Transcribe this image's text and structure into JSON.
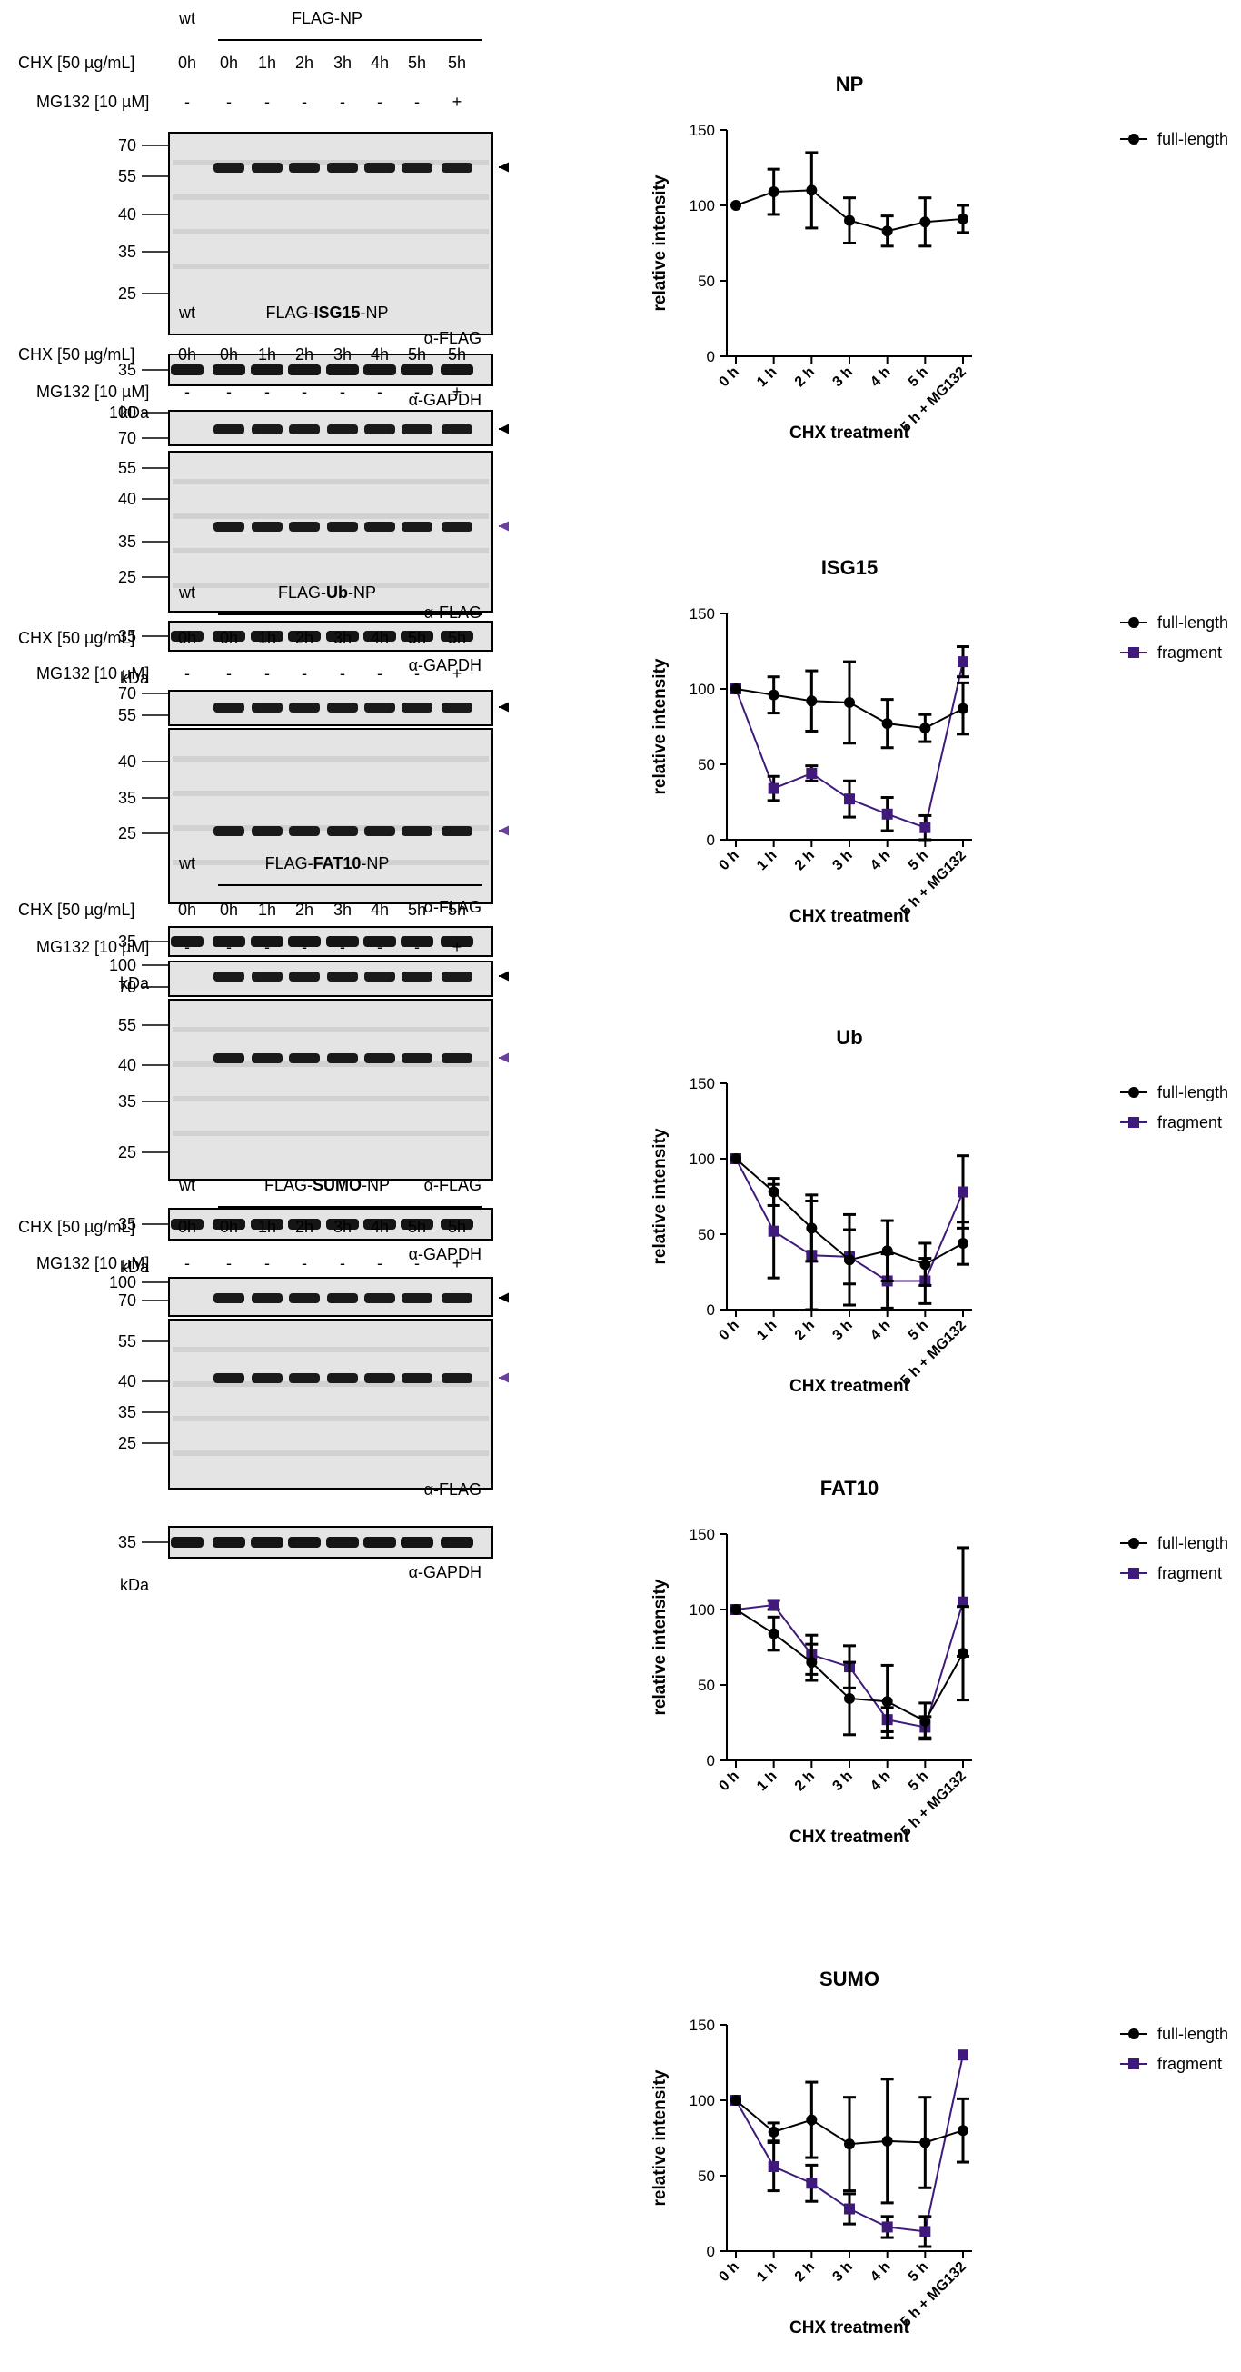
{
  "colors": {
    "full_length": "#000000",
    "fragment": "#3f1a7a",
    "arrow_fragment": "#6b3fa0",
    "blot_bg": "#e4e4e4"
  },
  "blot_labels": {
    "wt": "wt",
    "cond_label": "CHX [50 µg/mL]",
    "mg_label": "MG132 [10 µM]",
    "lanes": [
      "0h",
      "0h",
      "1h",
      "2h",
      "3h",
      "4h",
      "5h",
      "5h"
    ],
    "mg_values": [
      "-",
      "-",
      "-",
      "-",
      "-",
      "-",
      "-",
      "+"
    ],
    "anti_flag": "α-FLAG",
    "anti_gapdh": "α-GAPDH",
    "kda": "kDa"
  },
  "blots": [
    {
      "header_prefix": "FLAG-",
      "header_bold": "",
      "header_suffix": "NP",
      "main_markers": [
        "70",
        "55",
        "40",
        "35",
        "25"
      ],
      "top_markers": [],
      "gapdh_marker": "35"
    },
    {
      "header_prefix": "FLAG-",
      "header_bold": "ISG15",
      "header_suffix": "-NP",
      "top_markers": [
        "100",
        "70"
      ],
      "main_markers": [
        "55",
        "40",
        "35",
        "25"
      ],
      "gapdh_marker": "35"
    },
    {
      "header_prefix": "FLAG-",
      "header_bold": "Ub",
      "header_suffix": "-NP",
      "top_markers": [
        "70",
        "55"
      ],
      "main_markers": [
        "40",
        "35",
        "25"
      ],
      "gapdh_marker": "35"
    },
    {
      "header_prefix": "FLAG-",
      "header_bold": "FAT10",
      "header_suffix": "-NP",
      "top_markers": [
        "100",
        "70"
      ],
      "main_markers": [
        "55",
        "40",
        "35",
        "25"
      ],
      "gapdh_marker": "35"
    },
    {
      "header_prefix": "FLAG-",
      "header_bold": "SUMO",
      "header_suffix": "-NP",
      "top_markers": [
        "100",
        "70"
      ],
      "main_markers": [
        "55",
        "40",
        "35",
        "25"
      ],
      "gapdh_marker": "35"
    }
  ],
  "chart_data": [
    {
      "type": "line",
      "title": "NP",
      "xlabel": "CHX treatment",
      "ylabel": "relative intensity",
      "ylim": [
        0,
        150
      ],
      "yticks": [
        0,
        50,
        100,
        150
      ],
      "categories": [
        "0 h",
        "1 h",
        "2 h",
        "3 h",
        "4 h",
        "5 h",
        "5 h + MG132"
      ],
      "series": [
        {
          "name": "full-length",
          "marker": "circle",
          "values": [
            100,
            109,
            110,
            90,
            83,
            89,
            91
          ],
          "errors": [
            0,
            15,
            25,
            15,
            10,
            16,
            9
          ]
        }
      ]
    },
    {
      "type": "line",
      "title": "ISG15",
      "xlabel": "CHX treatment",
      "ylabel": "relative intensity",
      "ylim": [
        0,
        150
      ],
      "yticks": [
        0,
        50,
        100,
        150
      ],
      "categories": [
        "0 h",
        "1 h",
        "2 h",
        "3 h",
        "4 h",
        "5 h",
        "5 h + MG132"
      ],
      "series": [
        {
          "name": "full-length",
          "marker": "circle",
          "values": [
            100,
            96,
            92,
            91,
            77,
            74,
            87
          ],
          "errors": [
            0,
            12,
            20,
            27,
            16,
            9,
            17
          ]
        },
        {
          "name": "fragment",
          "marker": "square",
          "values": [
            100,
            34,
            44,
            27,
            17,
            8,
            118
          ],
          "errors": [
            0,
            8,
            5,
            12,
            11,
            8,
            10
          ]
        }
      ]
    },
    {
      "type": "line",
      "title": "Ub",
      "xlabel": "CHX treatment",
      "ylabel": "relative intensity",
      "ylim": [
        0,
        150
      ],
      "yticks": [
        0,
        50,
        100,
        150
      ],
      "categories": [
        "0 h",
        "1 h",
        "2 h",
        "3 h",
        "4 h",
        "5 h",
        "5 h + MG132"
      ],
      "series": [
        {
          "name": "full-length",
          "marker": "circle",
          "values": [
            100,
            78,
            54,
            33,
            39,
            30,
            44
          ],
          "errors": [
            0,
            9,
            22,
            30,
            20,
            14,
            14
          ]
        },
        {
          "name": "fragment",
          "marker": "square",
          "values": [
            100,
            52,
            36,
            35,
            19,
            19,
            78
          ],
          "errors": [
            0,
            31,
            36,
            18,
            18,
            15,
            24
          ]
        }
      ]
    },
    {
      "type": "line",
      "title": "FAT10",
      "xlabel": "CHX treatment",
      "ylabel": "relative intensity",
      "ylim": [
        0,
        150
      ],
      "yticks": [
        0,
        50,
        100,
        150
      ],
      "categories": [
        "0 h",
        "1 h",
        "2 h",
        "3 h",
        "4 h",
        "5 h",
        "5 h + MG132"
      ],
      "series": [
        {
          "name": "full-length",
          "marker": "circle",
          "values": [
            100,
            84,
            65,
            41,
            39,
            26,
            71
          ],
          "errors": [
            0,
            11,
            12,
            24,
            24,
            12,
            31
          ]
        },
        {
          "name": "fragment",
          "marker": "square",
          "values": [
            100,
            103,
            70,
            62,
            27,
            22,
            105
          ],
          "errors": [
            0,
            3,
            13,
            14,
            8,
            7,
            36
          ]
        }
      ]
    },
    {
      "type": "line",
      "title": "SUMO",
      "xlabel": "CHX treatment",
      "ylabel": "relative intensity",
      "ylim": [
        0,
        150
      ],
      "yticks": [
        0,
        50,
        100,
        150
      ],
      "categories": [
        "0 h",
        "1 h",
        "2 h",
        "3 h",
        "4 h",
        "5 h",
        "5 h + MG132"
      ],
      "series": [
        {
          "name": "full-length",
          "marker": "circle",
          "values": [
            100,
            79,
            87,
            71,
            73,
            72,
            80
          ],
          "errors": [
            0,
            6,
            25,
            31,
            41,
            30,
            21
          ]
        },
        {
          "name": "fragment",
          "marker": "square",
          "values": [
            100,
            56,
            45,
            28,
            16,
            13,
            130
          ],
          "errors": [
            0,
            16,
            12,
            10,
            7,
            10,
            0
          ]
        }
      ]
    }
  ]
}
